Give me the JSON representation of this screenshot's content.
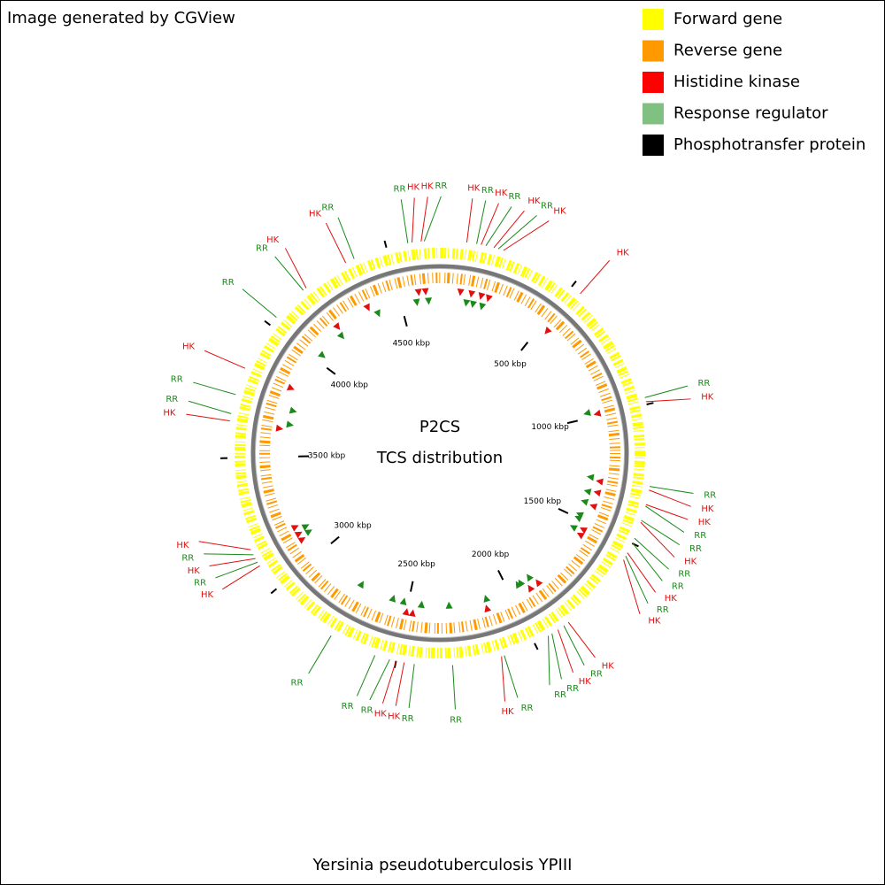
{
  "chart_data": {
    "type": "circular_genome",
    "watermark": "Image generated by CGView",
    "title": "P2CS",
    "subtitle": "TCS distribution",
    "caption": "Yersinia pseudotuberculosis YPIII",
    "legend": [
      {
        "name": "Forward gene",
        "color": "#ffff00"
      },
      {
        "name": "Reverse gene",
        "color": "#ff9900"
      },
      {
        "name": "Histidine kinase",
        "color": "#ff0000"
      },
      {
        "name": "Response regulator",
        "color": "#80c080"
      },
      {
        "name": "Phosphotransfer protein",
        "color": "#000000"
      }
    ],
    "xlim": [
      0,
      4690
    ],
    "xticks": [
      {
        "value": 500,
        "label": "500 kbp"
      },
      {
        "value": 1000,
        "label": "1000 kbp"
      },
      {
        "value": 1500,
        "label": "1500 kbp"
      },
      {
        "value": 2000,
        "label": "2000 kbp"
      },
      {
        "value": 2500,
        "label": "2500 kbp"
      },
      {
        "value": 3000,
        "label": "3000 kbp"
      },
      {
        "value": 3500,
        "label": "3500 kbp"
      },
      {
        "value": 4000,
        "label": "4000 kbp"
      },
      {
        "value": 4500,
        "label": "4500 kbp"
      }
    ],
    "feature_colors": {
      "HK": "#e01010",
      "RR": "#1a8a1a"
    },
    "features": [
      {
        "label": "HK",
        "position": 95
      },
      {
        "label": "RR",
        "position": 130
      },
      {
        "label": "HK",
        "position": 146
      },
      {
        "label": "RR",
        "position": 163
      },
      {
        "label": "HK",
        "position": 192
      },
      {
        "label": "RR",
        "position": 208
      },
      {
        "label": "HK",
        "position": 227
      },
      {
        "label": "HK",
        "position": 539
      },
      {
        "label": "RR",
        "position": 975
      },
      {
        "label": "HK",
        "position": 990
      },
      {
        "label": "RR",
        "position": 1290
      },
      {
        "label": "HK",
        "position": 1303
      },
      {
        "label": "HK",
        "position": 1355
      },
      {
        "label": "RR",
        "position": 1361
      },
      {
        "label": "RR",
        "position": 1413
      },
      {
        "label": "HK",
        "position": 1420
      },
      {
        "label": "RR",
        "position": 1480
      },
      {
        "label": "RR",
        "position": 1498
      },
      {
        "label": "HK",
        "position": 1537
      },
      {
        "label": "RR",
        "position": 1550
      },
      {
        "label": "HK",
        "position": 1565
      },
      {
        "label": "HK",
        "position": 1860
      },
      {
        "label": "RR",
        "position": 1880
      },
      {
        "label": "HK",
        "position": 1905
      },
      {
        "label": "RR",
        "position": 1930
      },
      {
        "label": "RR",
        "position": 1945
      },
      {
        "label": "RR",
        "position": 2115
      },
      {
        "label": "HK",
        "position": 2125
      },
      {
        "label": "RR",
        "position": 2300
      },
      {
        "label": "RR",
        "position": 2435
      },
      {
        "label": "HK",
        "position": 2471
      },
      {
        "label": "HK",
        "position": 2500
      },
      {
        "label": "RR",
        "position": 2523
      },
      {
        "label": "RR",
        "position": 2577
      },
      {
        "label": "RR",
        "position": 2746
      },
      {
        "label": "HK",
        "position": 3100
      },
      {
        "label": "RR",
        "position": 3115
      },
      {
        "label": "HK",
        "position": 3130
      },
      {
        "label": "RR",
        "position": 3145
      },
      {
        "label": "HK",
        "position": 3165
      },
      {
        "label": "HK",
        "position": 3631
      },
      {
        "label": "RR",
        "position": 3657
      },
      {
        "label": "RR",
        "position": 3726
      },
      {
        "label": "HK",
        "position": 3824
      },
      {
        "label": "RR",
        "position": 4035
      },
      {
        "label": "RR",
        "position": 4169
      },
      {
        "label": "HK",
        "position": 4182
      },
      {
        "label": "HK",
        "position": 4347
      },
      {
        "label": "RR",
        "position": 4380
      },
      {
        "label": "RR",
        "position": 4577
      },
      {
        "label": "HK",
        "position": 4592
      },
      {
        "label": "HK",
        "position": 4624
      },
      {
        "label": "RR",
        "position": 4635
      }
    ]
  }
}
